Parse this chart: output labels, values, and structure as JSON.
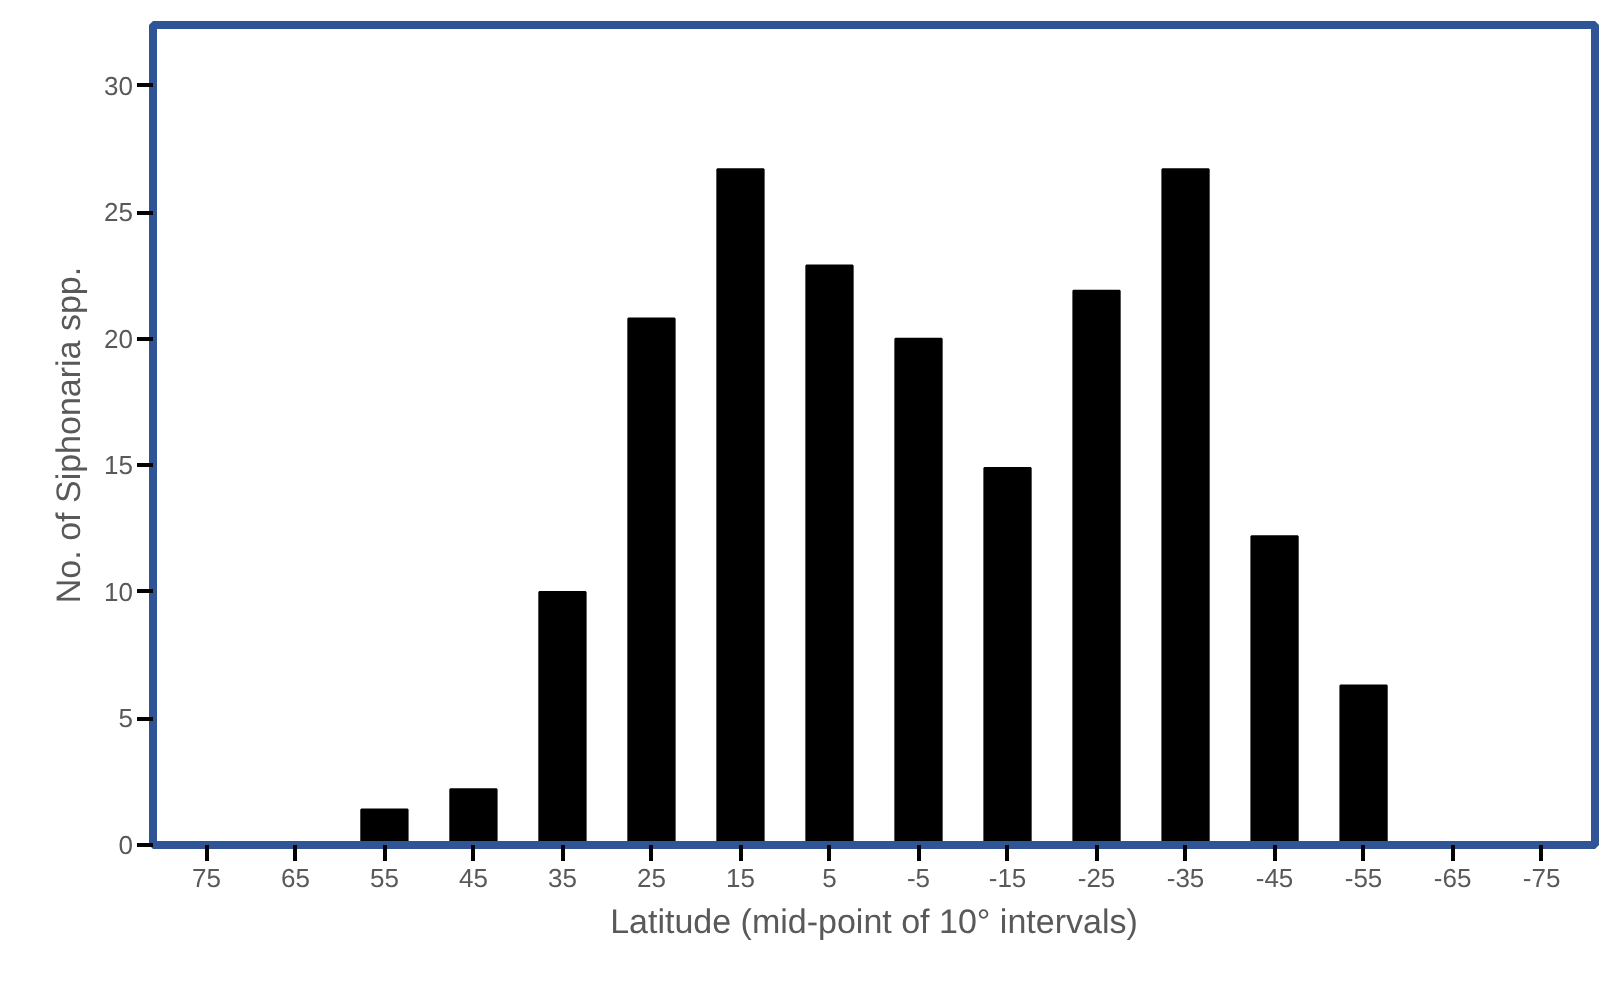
{
  "chart_data": {
    "type": "bar",
    "xlabel": "Latitude (mid-point of 10° intervals)",
    "ylabel": "No. of Siphonaria spp.",
    "categories": [
      "75",
      "65",
      "55",
      "45",
      "35",
      "25",
      "15",
      "5",
      "-5",
      "-15",
      "-25",
      "-35",
      "-45",
      "-55",
      "-65",
      "-75"
    ],
    "values": [
      0,
      0,
      1.4,
      2.2,
      10,
      20.8,
      26.7,
      22.9,
      20,
      14.9,
      21.9,
      26.7,
      12.2,
      6.3,
      0,
      0
    ],
    "color": "#000000",
    "ylim": [
      0,
      32.4
    ],
    "yticks": [
      0,
      5,
      10,
      15,
      20,
      25,
      30
    ],
    "grid": false
  }
}
